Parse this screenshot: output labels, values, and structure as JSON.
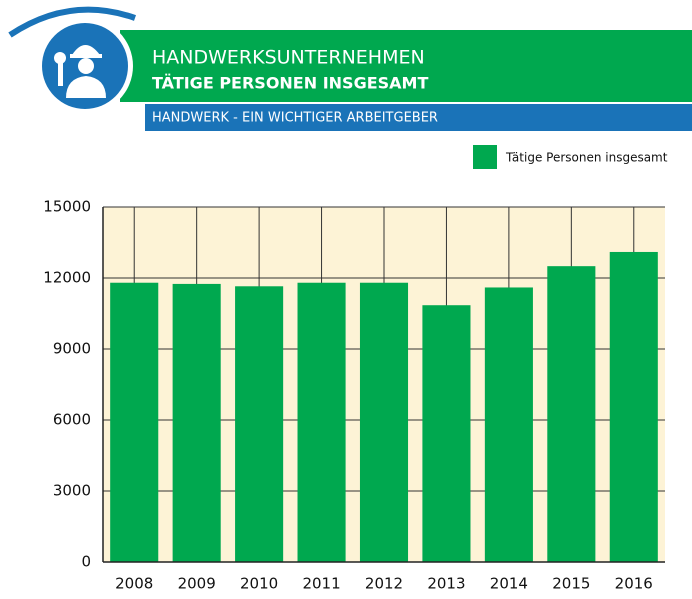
{
  "header": {
    "title": "HANDWERKSUNTERNEHMEN",
    "subtitle": "TÄTIGE PERSONEN INSGESAMT",
    "banner": "HANDWERK - EIN WICHTIGER ARBEITGEBER"
  },
  "chart_data": {
    "type": "bar",
    "categories": [
      "2008",
      "2009",
      "2010",
      "2011",
      "2012",
      "2013",
      "2014",
      "2015",
      "2016"
    ],
    "series": [
      {
        "name": "Tätige Personen insgesamt",
        "color": "#00a84f",
        "values": [
          11800,
          11750,
          11650,
          11800,
          11800,
          10850,
          11600,
          12500,
          13100
        ]
      }
    ],
    "ylim": [
      0,
      15000
    ],
    "yticks": [
      0,
      3000,
      6000,
      9000,
      12000,
      15000
    ],
    "grid": true,
    "legend": "top-right"
  }
}
